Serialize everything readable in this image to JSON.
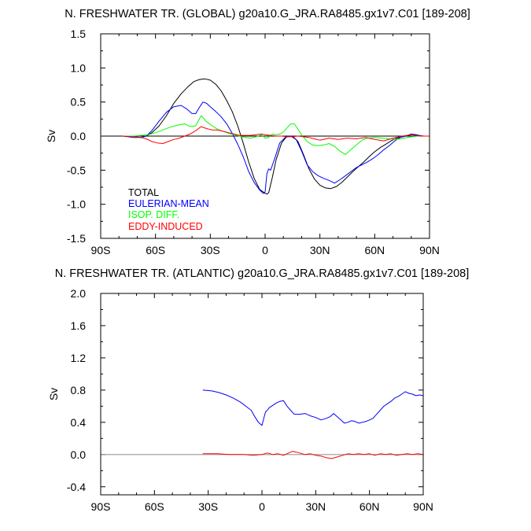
{
  "chart_data": [
    {
      "type": "line",
      "title": "N. FRESHWATER TR. (GLOBAL) g20a10.G_JRA.RA8485.gx1v7.C01 [189-208]",
      "xlabel": "",
      "ylabel": "Sv",
      "xlim": [
        -90,
        90
      ],
      "ylim": [
        -1.5,
        1.5
      ],
      "x_ticks": [
        -90,
        -60,
        -30,
        0,
        30,
        60,
        90
      ],
      "x_tick_labels": [
        "90S",
        "60S",
        "30S",
        "0",
        "30N",
        "60N",
        "90N"
      ],
      "y_ticks": [
        -1.5,
        -1.0,
        -0.5,
        0.0,
        0.5,
        1.0,
        1.5
      ],
      "y_tick_labels": [
        "-1.5",
        "-1.0",
        "-0.5",
        "0.0",
        "0.5",
        "1.0",
        "1.5"
      ],
      "zero_line": true,
      "legend_position": "bottom-left",
      "series": [
        {
          "name": "TOTAL",
          "color": "#000000",
          "x": [
            -78,
            -72,
            -68,
            -65,
            -62,
            -58,
            -54,
            -50,
            -46,
            -42,
            -39,
            -36,
            -33,
            -30,
            -27,
            -24,
            -21,
            -18,
            -15,
            -12,
            -9,
            -6,
            -3,
            0,
            1,
            2,
            4,
            6,
            9,
            12,
            15,
            18,
            21,
            24,
            27,
            30,
            33,
            36,
            39,
            42,
            45,
            48,
            51,
            54,
            57,
            60,
            63,
            66,
            69,
            72,
            75,
            78,
            81,
            84,
            87,
            90
          ],
          "y": [
            0.0,
            -0.01,
            -0.02,
            0.0,
            0.05,
            0.15,
            0.3,
            0.48,
            0.62,
            0.73,
            0.8,
            0.83,
            0.84,
            0.82,
            0.76,
            0.66,
            0.52,
            0.36,
            0.15,
            -0.1,
            -0.38,
            -0.62,
            -0.78,
            -0.84,
            -0.85,
            -0.83,
            -0.6,
            -0.35,
            -0.1,
            0.0,
            0.0,
            -0.08,
            -0.27,
            -0.48,
            -0.63,
            -0.72,
            -0.76,
            -0.77,
            -0.74,
            -0.68,
            -0.6,
            -0.52,
            -0.45,
            -0.38,
            -0.3,
            -0.23,
            -0.17,
            -0.12,
            -0.07,
            -0.03,
            -0.01,
            0.01,
            0.02,
            0.01,
            0.0,
            0.0
          ]
        },
        {
          "name": "EULERIAN-MEAN",
          "color": "#0000ff",
          "x": [
            -78,
            -72,
            -68,
            -65,
            -62,
            -58,
            -54,
            -50,
            -46,
            -43,
            -40,
            -38,
            -36,
            -34,
            -32,
            -30,
            -27,
            -24,
            -21,
            -18,
            -15,
            -12,
            -9,
            -6,
            -3,
            -1,
            0,
            1,
            2,
            3,
            5,
            8,
            11,
            14,
            17,
            20,
            23,
            26,
            29,
            32,
            35,
            38,
            41,
            44,
            47,
            50,
            53,
            56,
            59,
            62,
            65,
            68,
            71,
            74,
            77,
            80,
            83,
            86,
            90
          ],
          "y": [
            0.0,
            -0.02,
            -0.02,
            0.0,
            0.08,
            0.22,
            0.35,
            0.43,
            0.45,
            0.4,
            0.33,
            0.33,
            0.42,
            0.5,
            0.48,
            0.43,
            0.36,
            0.28,
            0.18,
            0.04,
            -0.12,
            -0.3,
            -0.52,
            -0.68,
            -0.79,
            -0.84,
            -0.82,
            -0.55,
            -0.48,
            -0.5,
            -0.35,
            -0.1,
            -0.02,
            0.0,
            -0.05,
            -0.22,
            -0.42,
            -0.52,
            -0.58,
            -0.62,
            -0.65,
            -0.69,
            -0.64,
            -0.58,
            -0.52,
            -0.46,
            -0.42,
            -0.38,
            -0.33,
            -0.27,
            -0.2,
            -0.14,
            -0.07,
            -0.02,
            0.0,
            0.03,
            0.02,
            0.0,
            0.0
          ]
        },
        {
          "name": "ISOP. DIFF.",
          "color": "#00ff00",
          "x": [
            -78,
            -72,
            -68,
            -64,
            -60,
            -56,
            -52,
            -48,
            -44,
            -41,
            -38,
            -35,
            -32,
            -29,
            -26,
            -23,
            -20,
            -17,
            -14,
            -11,
            -8,
            -5,
            -2,
            0,
            2,
            4,
            6,
            8,
            10,
            12,
            14,
            16,
            18,
            20,
            23,
            26,
            29,
            32,
            35,
            38,
            41,
            44,
            47,
            50,
            53,
            56,
            60,
            64,
            68,
            72,
            76,
            80,
            84,
            88,
            90
          ],
          "y": [
            0.0,
            0.0,
            0.01,
            0.02,
            0.05,
            0.09,
            0.13,
            0.16,
            0.18,
            0.14,
            0.15,
            0.3,
            0.21,
            0.15,
            0.1,
            0.07,
            0.04,
            0.02,
            0.0,
            -0.02,
            -0.03,
            -0.01,
            0.02,
            -0.03,
            -0.02,
            0.03,
            0.02,
            0.03,
            0.06,
            0.12,
            0.18,
            0.18,
            0.1,
            0.02,
            -0.08,
            -0.13,
            -0.14,
            -0.13,
            -0.11,
            -0.15,
            -0.22,
            -0.27,
            -0.2,
            -0.13,
            -0.06,
            -0.03,
            -0.02,
            -0.03,
            -0.04,
            -0.05,
            -0.03,
            -0.01,
            0.0,
            0.0,
            0.0
          ]
        },
        {
          "name": "EDDY-INDUCED",
          "color": "#ff0000",
          "x": [
            -78,
            -72,
            -68,
            -65,
            -62,
            -59,
            -56,
            -53,
            -50,
            -47,
            -44,
            -41,
            -38,
            -35,
            -32,
            -29,
            -26,
            -23,
            -20,
            -17,
            -14,
            -11,
            -8,
            -5,
            -2,
            0,
            3,
            6,
            9,
            12,
            15,
            18,
            21,
            24,
            27,
            30,
            35,
            40,
            45,
            50,
            55,
            60,
            65,
            70,
            75,
            80,
            85,
            90
          ],
          "y": [
            0.0,
            -0.01,
            -0.02,
            -0.04,
            -0.08,
            -0.1,
            -0.11,
            -0.08,
            -0.05,
            -0.03,
            0.0,
            0.03,
            0.08,
            0.14,
            0.11,
            0.09,
            0.09,
            0.07,
            0.05,
            0.03,
            0.01,
            0.01,
            0.01,
            0.02,
            0.03,
            0.02,
            0.01,
            0.0,
            0.0,
            -0.01,
            -0.01,
            0.0,
            -0.01,
            -0.02,
            -0.04,
            -0.06,
            -0.03,
            -0.05,
            -0.03,
            -0.04,
            -0.02,
            -0.05,
            -0.07,
            -0.03,
            0.0,
            0.02,
            0.0,
            0.0
          ]
        }
      ]
    },
    {
      "type": "line",
      "title": "N. FRESHWATER TR. (ATLANTIC) g20a10.G_JRA.RA8485.gx1v7.C01 [189-208]",
      "xlabel": "",
      "ylabel": "Sv",
      "xlim": [
        -90,
        90
      ],
      "ylim": [
        -0.5,
        2.0
      ],
      "x_ticks": [
        -90,
        -60,
        -30,
        0,
        30,
        60,
        90
      ],
      "x_tick_labels": [
        "90S",
        "60S",
        "30S",
        "0",
        "30N",
        "60N",
        "90N"
      ],
      "y_ticks": [
        -0.4,
        0.0,
        0.4,
        0.8,
        1.2,
        1.6,
        2.0
      ],
      "y_tick_labels": [
        "-0.4",
        "0.0",
        "0.4",
        "0.8",
        "1.2",
        "1.6",
        "2.0"
      ],
      "zero_line": true,
      "series": [
        {
          "name": "EULERIAN-MEAN",
          "color": "#0000ff",
          "x": [
            -33,
            -28,
            -24,
            -20,
            -16,
            -12,
            -9,
            -6,
            -4,
            -2,
            0,
            1,
            2,
            3,
            4,
            6,
            8,
            10,
            12,
            14,
            16,
            18,
            21,
            24,
            27,
            30,
            33,
            36,
            38,
            40,
            42,
            44,
            46,
            48,
            50,
            52,
            54,
            56,
            58,
            60,
            62,
            64,
            66,
            68,
            70,
            72,
            74,
            76,
            78,
            80,
            82,
            84,
            86,
            88,
            90
          ],
          "y": [
            0.8,
            0.79,
            0.77,
            0.74,
            0.7,
            0.65,
            0.6,
            0.55,
            0.47,
            0.4,
            0.36,
            0.45,
            0.53,
            0.55,
            0.58,
            0.61,
            0.64,
            0.66,
            0.67,
            0.6,
            0.55,
            0.5,
            0.5,
            0.51,
            0.48,
            0.46,
            0.43,
            0.45,
            0.47,
            0.51,
            0.47,
            0.43,
            0.39,
            0.4,
            0.42,
            0.41,
            0.39,
            0.4,
            0.41,
            0.43,
            0.45,
            0.5,
            0.55,
            0.6,
            0.63,
            0.66,
            0.7,
            0.72,
            0.75,
            0.78,
            0.76,
            0.75,
            0.73,
            0.74,
            0.73
          ]
        },
        {
          "name": "EDDY-INDUCED",
          "color": "#ff0000",
          "x": [
            -33,
            -25,
            -18,
            -10,
            -5,
            0,
            3,
            6,
            9,
            12,
            15,
            17,
            19,
            21,
            24,
            27,
            30,
            33,
            36,
            39,
            42,
            45,
            48,
            51,
            54,
            57,
            60,
            63,
            66,
            69,
            72,
            75,
            78,
            81,
            84,
            87,
            90
          ],
          "y": [
            0.01,
            0.01,
            0.0,
            0.0,
            -0.01,
            0.0,
            0.02,
            0.0,
            0.01,
            -0.01,
            0.02,
            0.04,
            0.03,
            0.02,
            0.0,
            0.01,
            -0.01,
            -0.02,
            -0.04,
            -0.05,
            -0.03,
            -0.01,
            0.01,
            0.0,
            0.01,
            0.0,
            0.01,
            -0.01,
            0.01,
            0.0,
            0.01,
            -0.01,
            0.0,
            0.01,
            0.0,
            0.01,
            0.0
          ]
        }
      ]
    }
  ]
}
